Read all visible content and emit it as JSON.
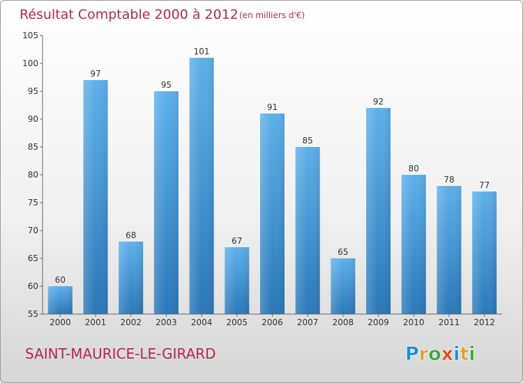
{
  "chart_data": {
    "type": "bar",
    "title": "Résultat Comptable 2000 à 2012",
    "subtitle": "(en milliers d'€)",
    "categories": [
      "2000",
      "2001",
      "2002",
      "2003",
      "2004",
      "2005",
      "2006",
      "2007",
      "2008",
      "2009",
      "2010",
      "2011",
      "2012"
    ],
    "values": [
      60,
      97,
      68,
      95,
      101,
      67,
      91,
      85,
      65,
      92,
      80,
      78,
      77
    ],
    "ylim": [
      55,
      105
    ],
    "yticks": [
      55,
      60,
      65,
      70,
      75,
      80,
      85,
      90,
      95,
      100,
      105
    ],
    "xlabel": "",
    "ylabel": "",
    "grid": false,
    "bar_color": "#3a8fd6"
  },
  "location": "SAINT-MAURICE-LE-GIRARD",
  "brand": {
    "letters": [
      "P",
      "r",
      "o",
      "x",
      "i",
      "t",
      "i"
    ],
    "colors": [
      "#1a8fd0",
      "#e0a020",
      "#3aa838",
      "#e04a1c",
      "#1a8fd0",
      "#e0a020",
      "#3aa838"
    ]
  }
}
